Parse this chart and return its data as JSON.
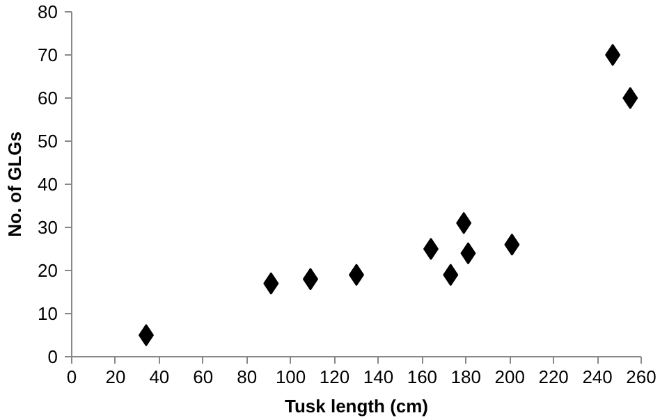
{
  "chart_data": {
    "type": "scatter",
    "xlabel": "Tusk length (cm)",
    "ylabel": "No. of GLGs",
    "x": [
      34,
      91,
      109,
      130,
      164,
      173,
      179,
      181,
      201,
      247,
      255
    ],
    "values": [
      5,
      17,
      18,
      19,
      25,
      19,
      31,
      24,
      26,
      70,
      60
    ],
    "color": "#000000",
    "marker": "diamond",
    "xlim": [
      0,
      260
    ],
    "xticks": [
      0,
      20,
      40,
      60,
      80,
      100,
      120,
      140,
      160,
      180,
      200,
      220,
      240,
      260
    ],
    "ylim": [
      0,
      80
    ],
    "yticks": [
      0,
      10,
      20,
      30,
      40,
      50,
      60,
      70,
      80
    ],
    "grid": false
  }
}
